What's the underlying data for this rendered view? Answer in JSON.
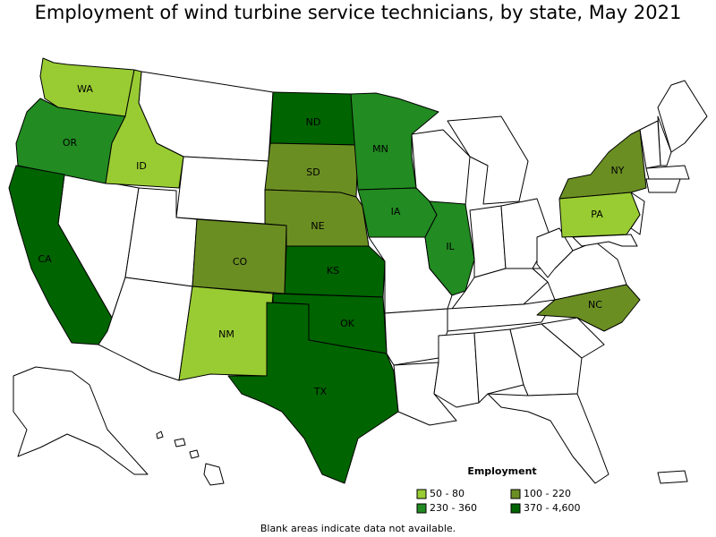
{
  "title": "Employment of wind turbine service technicians, by state, May 2021",
  "states": [
    {
      "label": "WA",
      "color": "#99cc33"
    },
    {
      "label": "OR",
      "color": "#228b22"
    },
    {
      "label": "CA",
      "color": "#006400"
    },
    {
      "label": "ID",
      "color": "#99cc33"
    },
    {
      "label": "ND",
      "color": "#006400"
    },
    {
      "label": "SD",
      "color": "#6b8e23"
    },
    {
      "label": "NE",
      "color": "#6b8e23"
    },
    {
      "label": "CO",
      "color": "#6b8e23"
    },
    {
      "label": "KS",
      "color": "#006400"
    },
    {
      "label": "OK",
      "color": "#006400"
    },
    {
      "label": "NM",
      "color": "#99cc33"
    },
    {
      "label": "TX",
      "color": "#006400"
    },
    {
      "label": "MN",
      "color": "#228b22"
    },
    {
      "label": "IA",
      "color": "#228b22"
    },
    {
      "label": "IL",
      "color": "#228b22"
    },
    {
      "label": "NY",
      "color": "#6b8e23"
    },
    {
      "label": "PA",
      "color": "#99cc33"
    },
    {
      "label": "NC",
      "color": "#6b8e23"
    }
  ],
  "legend": {
    "title": "Employment",
    "items": [
      {
        "label": "50 - 80",
        "color": "#99cc33"
      },
      {
        "label": "100 - 220",
        "color": "#6b8e23"
      },
      {
        "label": "230 - 360",
        "color": "#228b22"
      },
      {
        "label": "370 - 4,600",
        "color": "#006400"
      }
    ]
  },
  "note": "Blank areas indicate data not available."
}
